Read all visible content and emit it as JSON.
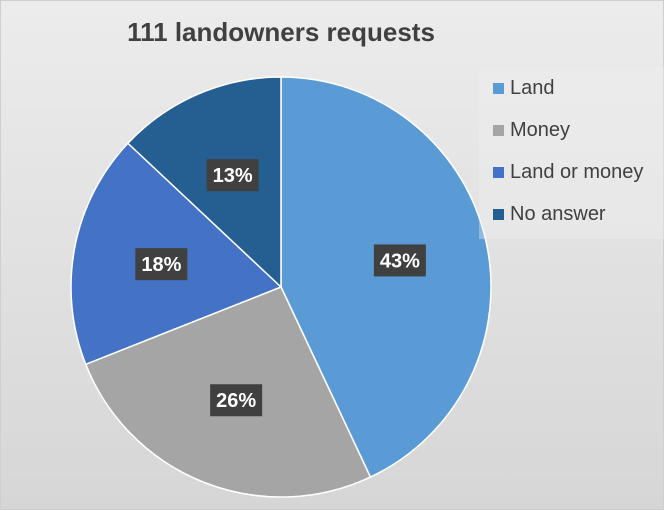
{
  "chart_data": {
    "type": "pie",
    "title": "111 landowners requests",
    "categories": [
      "Land",
      "Money",
      "Land or money",
      "No answer"
    ],
    "values": [
      43,
      26,
      18,
      13
    ],
    "value_labels": [
      "43%",
      "26%",
      "18%",
      "13%"
    ],
    "colors": [
      "#5b9bd5",
      "#a5a5a5",
      "#4472c4",
      "#255e91"
    ],
    "legend_position": "right"
  }
}
